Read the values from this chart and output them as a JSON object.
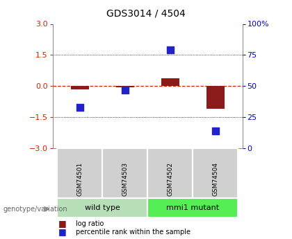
{
  "title": "GDS3014 / 4504",
  "samples": [
    "GSM74501",
    "GSM74503",
    "GSM74502",
    "GSM74504"
  ],
  "log_ratios": [
    -0.15,
    -0.05,
    0.38,
    -1.1
  ],
  "percentile_ranks": [
    33,
    47,
    79,
    14
  ],
  "groups": [
    {
      "label": "wild type",
      "samples": [
        0,
        1
      ],
      "color": "#b8e0b8"
    },
    {
      "label": "mmi1 mutant",
      "samples": [
        2,
        3
      ],
      "color": "#55ee55"
    }
  ],
  "ylim_left": [
    -3,
    3
  ],
  "ylim_right": [
    0,
    100
  ],
  "yticks_left": [
    -3,
    -1.5,
    0,
    1.5,
    3
  ],
  "yticks_right": [
    0,
    25,
    50,
    75,
    100
  ],
  "bar_color": "#8b1a1a",
  "dot_color": "#2222cc",
  "background_color": "#ffffff",
  "genotype_label": "genotype/variation",
  "legend_items": [
    {
      "label": "log ratio",
      "color": "#8b1a1a"
    },
    {
      "label": "percentile rank within the sample",
      "color": "#2222cc"
    }
  ],
  "bar_width": 0.4,
  "dot_size": 55
}
